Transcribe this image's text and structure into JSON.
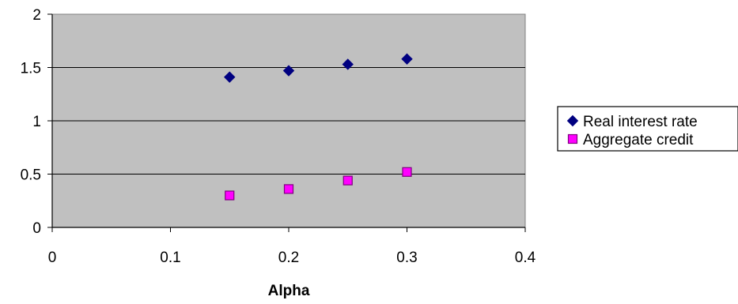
{
  "chart_data": {
    "type": "scatter",
    "title": "",
    "xlabel": "Alpha",
    "ylabel": "",
    "xlim": [
      0,
      0.4
    ],
    "ylim": [
      0,
      2
    ],
    "x_ticks": [
      "0",
      "0.1",
      "0.2",
      "0.3",
      "0.4"
    ],
    "y_ticks": [
      "0",
      "0.5",
      "1",
      "1.5",
      "2"
    ],
    "grid": "horizontal",
    "legend_position": "right",
    "series": [
      {
        "name": "Real interest rate",
        "marker": "diamond",
        "color": "#000080",
        "x": [
          0.15,
          0.2,
          0.25,
          0.3
        ],
        "y": [
          1.41,
          1.47,
          1.53,
          1.58
        ]
      },
      {
        "name": "Aggregate credit",
        "marker": "square",
        "color": "#ff00ff",
        "x": [
          0.15,
          0.2,
          0.25,
          0.3
        ],
        "y": [
          0.3,
          0.36,
          0.44,
          0.52
        ]
      }
    ],
    "plot_background": "#c0c0c0"
  }
}
